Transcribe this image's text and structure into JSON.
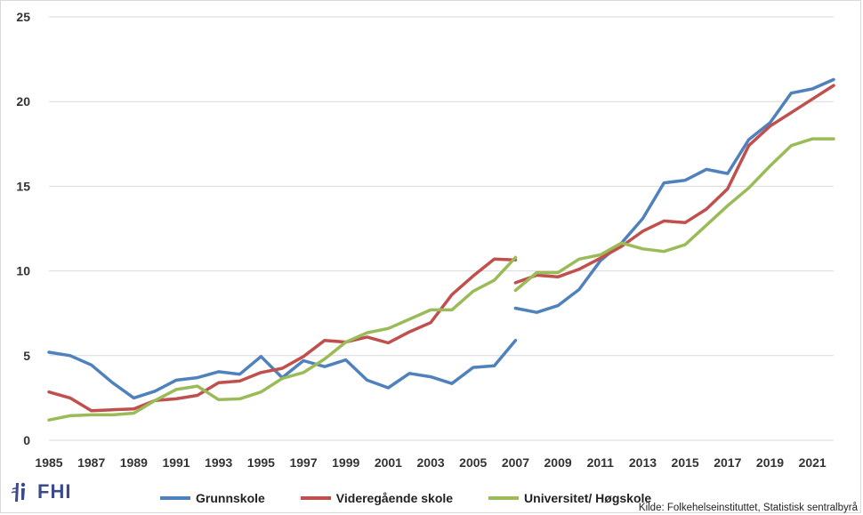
{
  "chart_data": {
    "type": "line",
    "title": "",
    "xlabel": "",
    "ylabel": "",
    "ylim": [
      0,
      25
    ],
    "yticks": [
      0,
      5,
      10,
      15,
      20,
      25
    ],
    "xticks": [
      1985,
      1987,
      1989,
      1991,
      1993,
      1995,
      1997,
      1999,
      2001,
      2003,
      2005,
      2007,
      2009,
      2011,
      2013,
      2015,
      2017,
      2019,
      2021
    ],
    "x": [
      1985,
      1986,
      1987,
      1988,
      1989,
      1990,
      1991,
      1992,
      1993,
      1994,
      1995,
      1996,
      1997,
      1998,
      1999,
      2000,
      2001,
      2002,
      2003,
      2004,
      2005,
      2006,
      2007,
      2008,
      2009,
      2010,
      2011,
      2012,
      2013,
      2014,
      2015,
      2016,
      2017,
      2018,
      2019,
      2020,
      2021,
      2022
    ],
    "break_after": 2007,
    "grid": "horizontal",
    "legend_position": "bottom",
    "series": [
      {
        "name": "Grunnskole",
        "color": "#4f81bd",
        "values": [
          5.2,
          5.0,
          4.45,
          3.4,
          2.5,
          2.9,
          3.55,
          3.7,
          4.05,
          3.9,
          4.95,
          3.7,
          4.7,
          4.35,
          4.75,
          3.55,
          3.1,
          3.95,
          3.75,
          3.35,
          4.3,
          4.4,
          5.9,
          7.55,
          7.95,
          8.9,
          10.6,
          11.65,
          13.1,
          15.2,
          15.35,
          16.0,
          15.75,
          17.75,
          18.75,
          20.5,
          20.75,
          21.3
        ],
        "first_2007": 7.8
      },
      {
        "name": "Videregående skole",
        "color": "#c0504d",
        "values": [
          2.85,
          2.5,
          1.75,
          1.8,
          1.85,
          2.35,
          2.45,
          2.65,
          3.4,
          3.5,
          4.0,
          4.25,
          4.95,
          5.9,
          5.8,
          6.1,
          5.75,
          6.4,
          6.95,
          8.6,
          9.7,
          10.7,
          10.65,
          9.75,
          9.65,
          10.1,
          10.75,
          11.45,
          12.35,
          12.95,
          12.85,
          13.65,
          14.85,
          17.4,
          18.55,
          19.35,
          20.15,
          20.95
        ],
        "first_2007": 9.3
      },
      {
        "name": "Universitet/ Høgskole",
        "color": "#9bbb59",
        "values": [
          1.2,
          1.45,
          1.5,
          1.5,
          1.6,
          2.35,
          3.0,
          3.2,
          2.4,
          2.45,
          2.85,
          3.65,
          4.0,
          4.8,
          5.8,
          6.35,
          6.6,
          7.15,
          7.7,
          7.7,
          8.8,
          9.45,
          10.8,
          9.9,
          9.9,
          10.7,
          10.95,
          11.65,
          11.3,
          11.15,
          11.55,
          12.7,
          13.85,
          14.9,
          16.2,
          17.4,
          17.8,
          17.8
        ],
        "first_2007": 8.85
      }
    ]
  },
  "legend": {
    "items": [
      {
        "label": "Grunnskole",
        "color": "#4f81bd"
      },
      {
        "label": "Videregående skole",
        "color": "#c0504d"
      },
      {
        "label": "Universitet/ Høgskole",
        "color": "#9bbb59"
      }
    ]
  },
  "source": "Kilde: Folkehelseinstituttet, Statistisk sentralbyrå",
  "logo": {
    "text": "FHI",
    "color": "#3b4a8f"
  }
}
